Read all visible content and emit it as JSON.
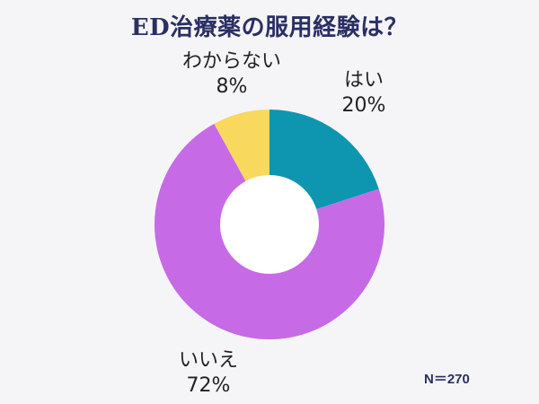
{
  "chart_data": {
    "type": "pie",
    "title": "ED治療薬の服用経験は？",
    "note": "N＝270",
    "categories": [
      "はい",
      "いいえ",
      "わからない"
    ],
    "values": [
      20,
      72,
      8
    ],
    "value_labels": [
      "20%",
      "72%",
      "8%"
    ],
    "colors": [
      "#0e96b0",
      "#c76ae6",
      "#f9d85e"
    ],
    "donut_hole_color": "#ffffff"
  }
}
